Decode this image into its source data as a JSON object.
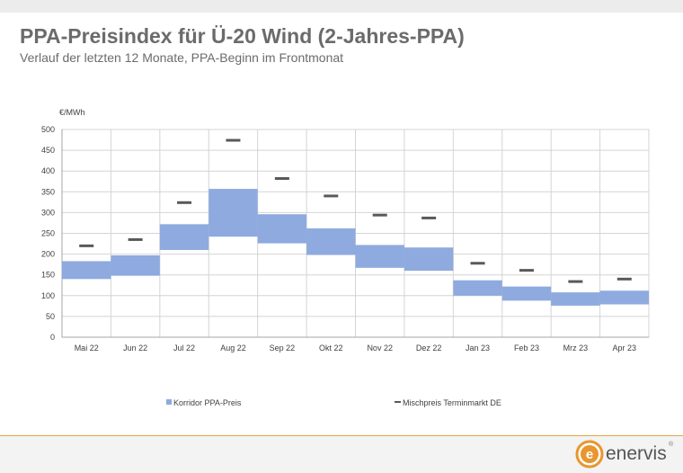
{
  "page": {
    "title": "PPA-Preisindex für Ü-20 Wind (2-Jahres-PPA)",
    "subtitle": "Verlauf der letzten 12 Monate, PPA-Beginn im Frontmonat"
  },
  "brand": {
    "name": "enervis",
    "registered_mark": "®",
    "logo_letter": "e",
    "accent_color": "#e8962f"
  },
  "chart_data": {
    "type": "bar",
    "ylabel": "€/MWh",
    "ylim": [
      0,
      500
    ],
    "yticks": [
      0,
      50,
      100,
      150,
      200,
      250,
      300,
      350,
      400,
      450,
      500
    ],
    "grid": true,
    "legend_position": "bottom",
    "categories": [
      "Mai 22",
      "Jun 22",
      "Jul 22",
      "Aug 22",
      "Sep 22",
      "Okt 22",
      "Nov 22",
      "Dez 22",
      "Jan 23",
      "Feb 23",
      "Mrz 23",
      "Apr 23"
    ],
    "series": [
      {
        "name": "Korridor PPA-Preis",
        "color": "#8eaadf",
        "low": [
          140,
          148,
          210,
          242,
          226,
          198,
          167,
          160,
          100,
          88,
          76,
          79
        ],
        "high": [
          183,
          197,
          272,
          357,
          296,
          262,
          222,
          216,
          137,
          122,
          108,
          112
        ]
      },
      {
        "name": "Mischpreis Terminmarkt DE",
        "color": "#595959",
        "values": [
          220,
          235,
          324,
          474,
          382,
          340,
          294,
          287,
          178,
          161,
          134,
          140
        ]
      }
    ]
  }
}
